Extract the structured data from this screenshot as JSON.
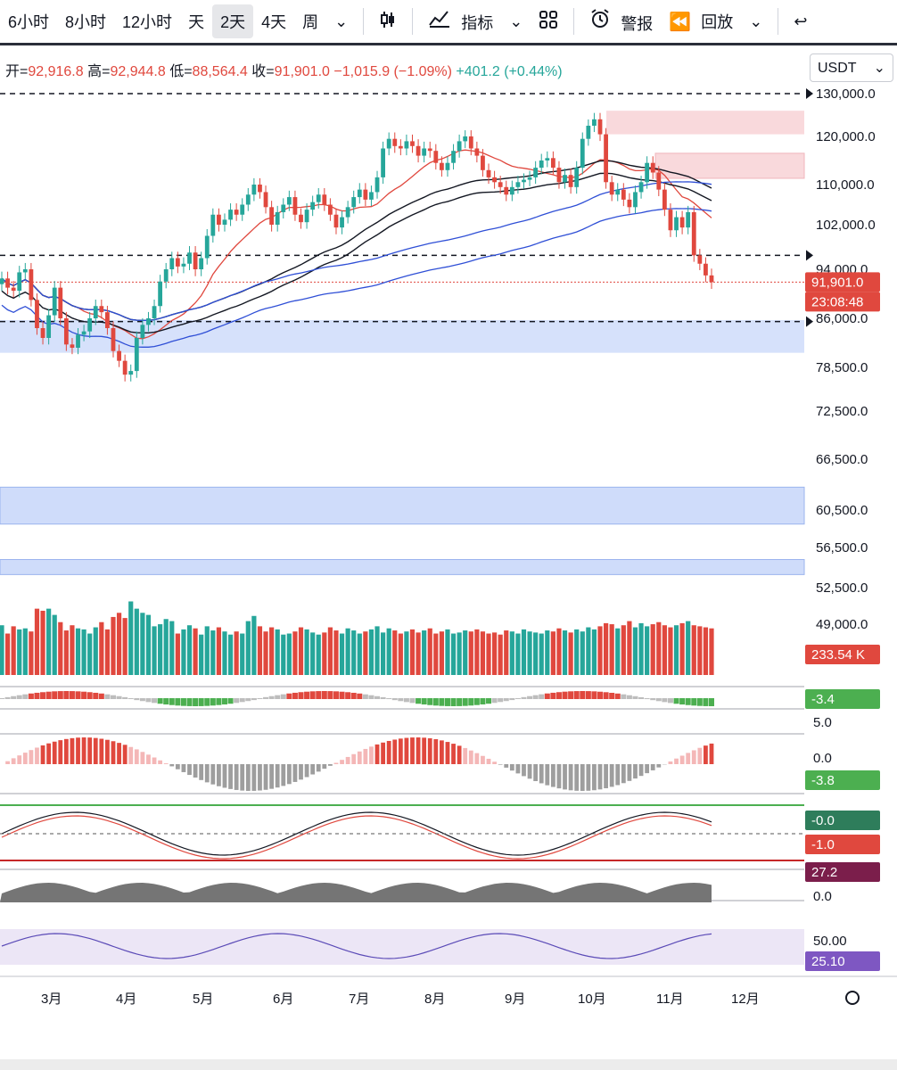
{
  "toolbar": {
    "items": [
      "6小时",
      "8小时",
      "12小时",
      "天",
      "2天",
      "4天",
      "周"
    ],
    "active_index": 4,
    "indicators_label": "指标",
    "alerts_label": "警报",
    "replay_label": "回放"
  },
  "ohlc": {
    "open_label": "开=",
    "open": "92,916.8",
    "high_label": "高=",
    "high": "92,944.8",
    "low_label": "低=",
    "low": "88,564.4",
    "close_label": "收=",
    "close": "91,901.0",
    "change": "−1,015.9 (−1.09%)",
    "extra_change": "+401.2 (+0.44%)"
  },
  "currency": "USDT",
  "colors": {
    "up": "#26a69a",
    "down": "#e0483e",
    "blue_ma": "#2f4fd6",
    "red_ma": "#e0483e",
    "zone_blue": "#cfdcfa",
    "zone_red": "#f9d9dc"
  },
  "chart_data": {
    "type": "candlestick",
    "price_axis": {
      "ticks": [
        "130,000.0",
        "120,000.0",
        "110,000.0",
        "102,000.0",
        "94,000.0",
        "86,000.0",
        "78,500.0",
        "72,500.0",
        "66,500.0",
        "60,500.0",
        "56,500.0",
        "52,500.0",
        "49,000.0"
      ],
      "tick_values": [
        130000,
        120000,
        110000,
        102000,
        94000,
        86000,
        78500,
        72500,
        66500,
        60500,
        56500,
        52500,
        49000
      ]
    },
    "x_axis": {
      "labels": [
        "3月",
        "4月",
        "5月",
        "6月",
        "7月",
        "8月",
        "9月",
        "10月",
        "11月",
        "12月"
      ]
    },
    "last_price_tag": {
      "value": "91,901.0",
      "countdown": "23:08:48"
    },
    "volume_tag": "233.54 K",
    "indicator_tags": [
      {
        "label": "-3.4",
        "color": "#4caf50"
      },
      {
        "label": "5.0",
        "color": ""
      },
      {
        "label": "0.0",
        "color": ""
      },
      {
        "label": "-3.8",
        "color": "#4caf50"
      },
      {
        "label": "-0.0",
        "color": "#2e7d5b"
      },
      {
        "label": "-1.0",
        "color": "#e0483e"
      },
      {
        "label": "27.2",
        "color": "#7b1e4b"
      },
      {
        "label": "0.0",
        "color": ""
      },
      {
        "label": "50.00",
        "color": ""
      },
      {
        "label": "25.10",
        "color": "#7e57c2"
      }
    ],
    "close_series": [
      92500,
      91000,
      90500,
      93500,
      94000,
      89000,
      84500,
      83000,
      86500,
      91000,
      86000,
      82000,
      81500,
      83500,
      84000,
      86000,
      88000,
      87000,
      84500,
      81000,
      79500,
      77500,
      78000,
      83000,
      85000,
      86000,
      88000,
      92000,
      94000,
      96000,
      94500,
      95000,
      97000,
      94000,
      96000,
      100000,
      104000,
      102000,
      103000,
      105000,
      104000,
      106000,
      108000,
      110000,
      108500,
      105500,
      102000,
      104500,
      106000,
      107500,
      104000,
      102500,
      105000,
      106500,
      108000,
      106000,
      104000,
      101500,
      103500,
      105500,
      107500,
      109000,
      107000,
      108500,
      111500,
      117500,
      119500,
      118000,
      117500,
      119000,
      118000,
      116000,
      117500,
      117000,
      114500,
      113000,
      114500,
      117000,
      119000,
      120000,
      117500,
      116000,
      113000,
      111500,
      110500,
      109500,
      108000,
      109500,
      110500,
      111000,
      111500,
      113500,
      115000,
      115500,
      113500,
      110500,
      112000,
      109500,
      113500,
      119500,
      122500,
      124000,
      120500,
      110500,
      108000,
      109000,
      107000,
      105500,
      108500,
      110500,
      114500,
      112500,
      109000,
      105000,
      101000,
      103500,
      101500,
      104500,
      96500,
      95000,
      93000,
      91901
    ],
    "volume_series": [
      48,
      40,
      47,
      44,
      45,
      42,
      64,
      62,
      64,
      58,
      51,
      43,
      48,
      45,
      44,
      40,
      46,
      51,
      44,
      56,
      60,
      55,
      71,
      64,
      60,
      58,
      47,
      49,
      54,
      52,
      40,
      44,
      48,
      45,
      39,
      47,
      43,
      46,
      42,
      39,
      42,
      40,
      52,
      57,
      47,
      42,
      46,
      44,
      39,
      40,
      42,
      46,
      44,
      41,
      39,
      41,
      46,
      43,
      40,
      45,
      43,
      40,
      42,
      44,
      47,
      41,
      45,
      43,
      40,
      42,
      44,
      41,
      43,
      45,
      40,
      42,
      44,
      40,
      41,
      43,
      42,
      44,
      42,
      40,
      41,
      39,
      43,
      42,
      40,
      44,
      42,
      41,
      40,
      43,
      42,
      45,
      43,
      41,
      44,
      42,
      46,
      44,
      47,
      50,
      49,
      45,
      48,
      52,
      46,
      50,
      47,
      49,
      51,
      48,
      46,
      48,
      50,
      52,
      48,
      47,
      46,
      45
    ]
  }
}
